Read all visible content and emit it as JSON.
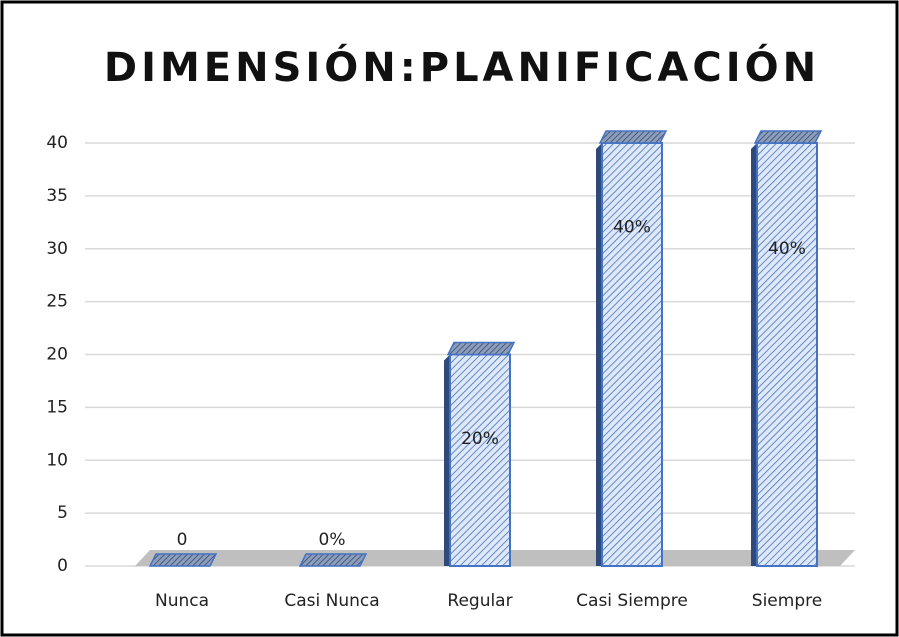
{
  "chart_data": {
    "type": "bar",
    "title": "DIMENSIÓN:PLANIFICACIÓN",
    "categories": [
      "Nunca",
      "Casi Nunca",
      "Regular",
      "Casi Siempre",
      "Siempre"
    ],
    "values": [
      0,
      0,
      20,
      40,
      40
    ],
    "value_labels": [
      "0",
      "0%",
      "20%",
      "40%",
      "40%"
    ],
    "color": "#4472c4",
    "ylim": [
      0,
      40
    ],
    "yticks": [
      0,
      5,
      10,
      15,
      20,
      25,
      30,
      35,
      40
    ],
    "grid": true
  }
}
